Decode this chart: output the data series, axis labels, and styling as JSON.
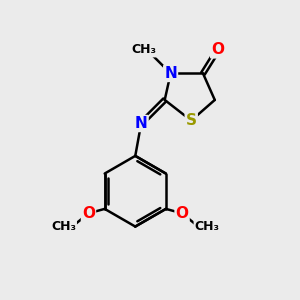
{
  "bg_color": "#ebebeb",
  "bond_color": "#000000",
  "bond_width": 1.8,
  "atom_colors": {
    "N": "#0000ff",
    "S": "#999900",
    "O": "#ff0000",
    "C": "#000000"
  },
  "font_size_atom": 11,
  "font_size_small": 9,
  "xlim": [
    0,
    10
  ],
  "ylim": [
    0,
    10
  ]
}
